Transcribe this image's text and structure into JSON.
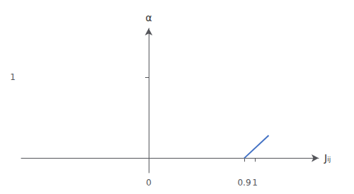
{
  "chart_data": {
    "type": "line",
    "x": [
      0.9,
      1.13
    ],
    "values": [
      0.0,
      0.28
    ],
    "color": "#4472c4",
    "xlabel": "Jᵢⱼ",
    "ylabel": "α",
    "xlim": [
      -1.2,
      1.6
    ],
    "xticks": [
      0,
      0.9,
      1
    ],
    "ylim": [
      -0.18,
      1.6
    ],
    "yticks": [
      1
    ],
    "grid": false
  }
}
